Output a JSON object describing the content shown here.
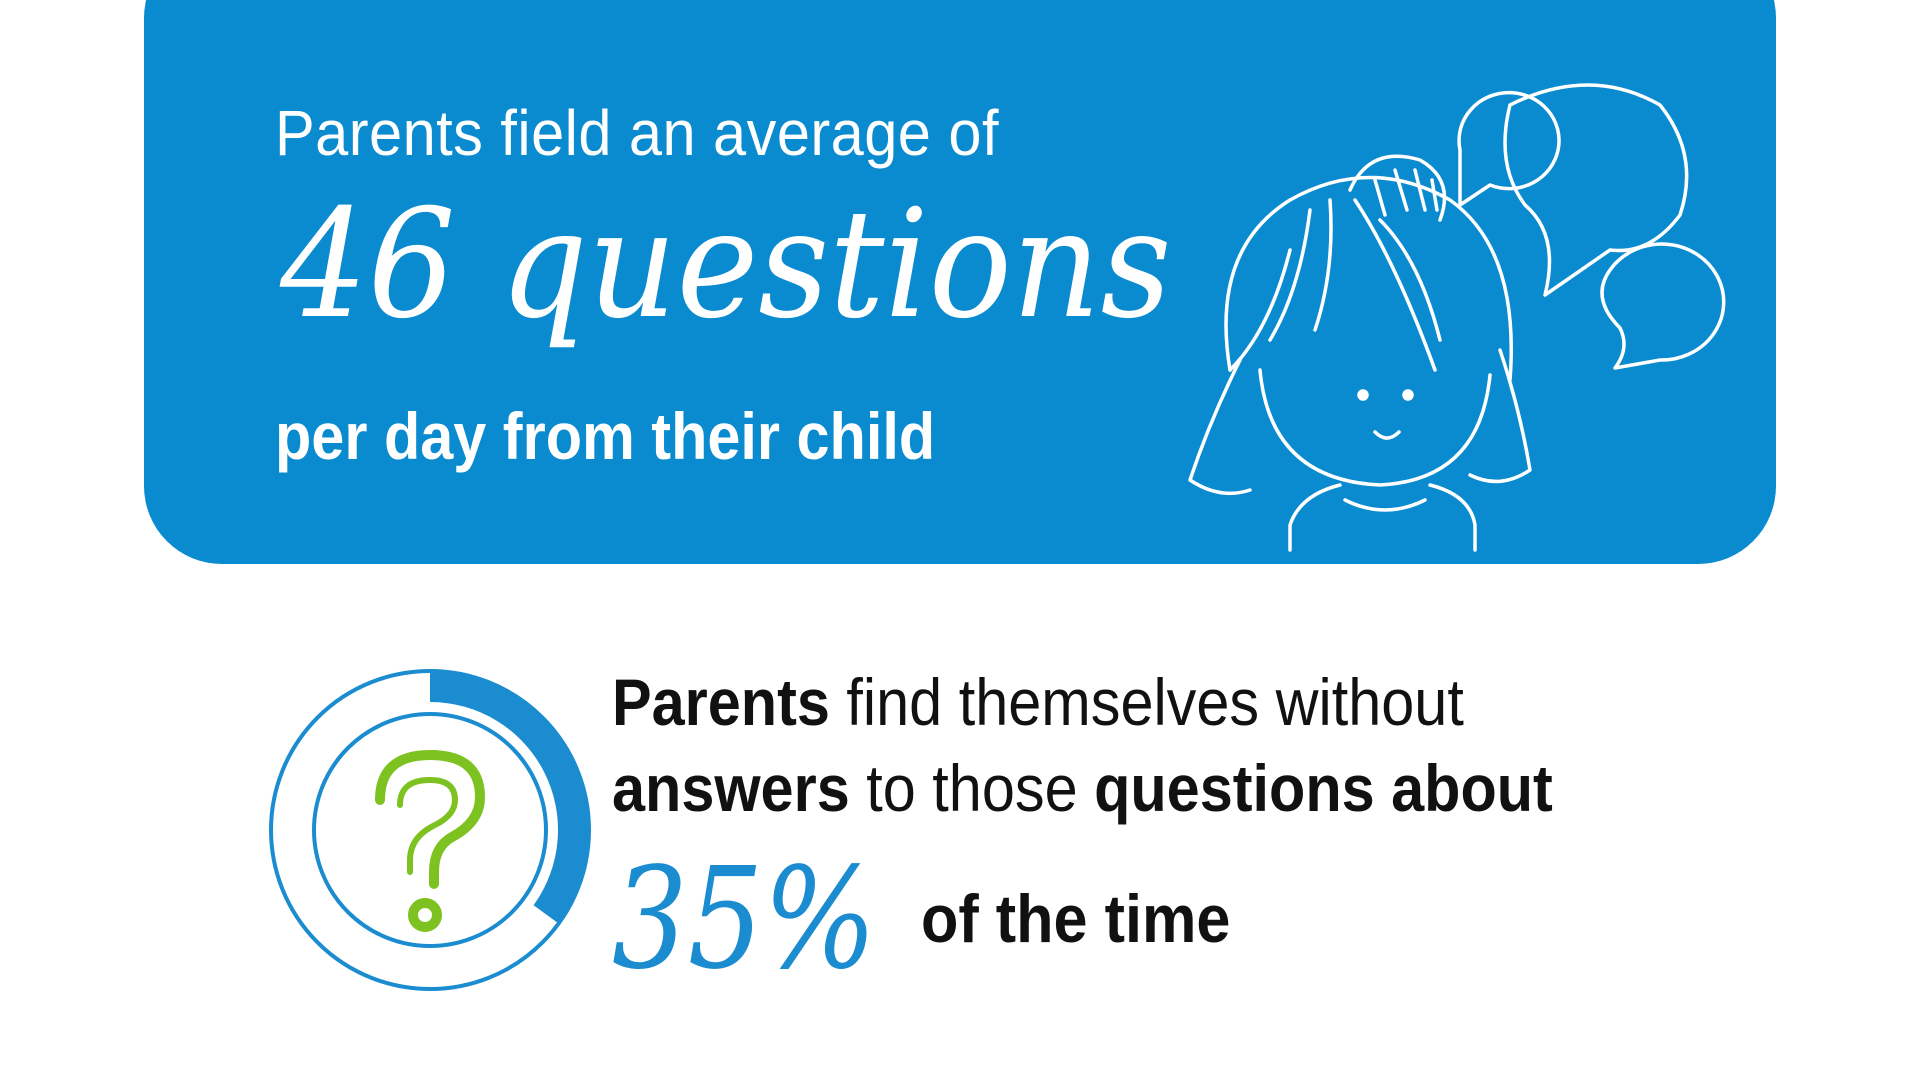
{
  "top_card": {
    "line1": "Parents field an average of",
    "headline": "46 questions",
    "line3": "per day from their child",
    "background_color": "#0a8bd0",
    "illustration": "girl-with-speech-bubbles-icon"
  },
  "bottom": {
    "line1_bold": "Parents",
    "line1_rest": " find themselves without",
    "line2_bold1": "answers",
    "line2_mid": " to those ",
    "line2_bold2": "questions about",
    "percent": "35%",
    "percent_value": 35,
    "tail": "of the time",
    "accent_color": "#1a8ccf",
    "question_color": "#7dc220",
    "icon": "question-mark-icon"
  }
}
